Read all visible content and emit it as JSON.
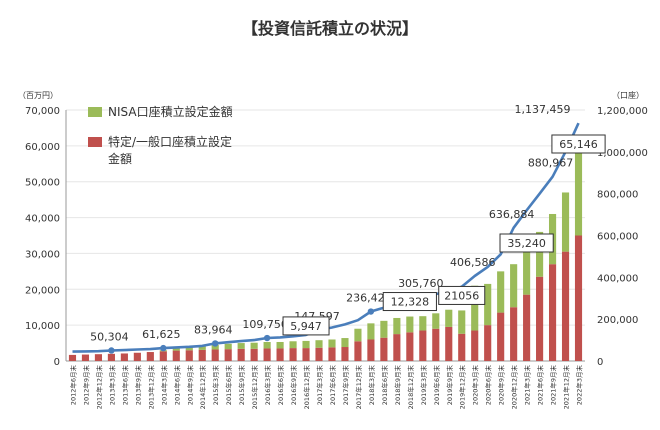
{
  "chart_data": {
    "type": "bar",
    "title": "【投資信託積立の状況】",
    "y_left_unit": "（百万円）",
    "y_right_unit": "（口座）",
    "ylim_left": [
      0,
      70000
    ],
    "ylim_right": [
      0,
      1200000
    ],
    "left_ticks": [
      "0",
      "10,000",
      "20,000",
      "30,000",
      "40,000",
      "50,000",
      "60,000",
      "70,000"
    ],
    "right_ticks": [
      "0",
      "200,000",
      "400,000",
      "600,000",
      "800,000",
      "1,000,000",
      "1,200,000"
    ],
    "legend": {
      "nisa": "NISA口座積立設定金額",
      "tokutei_line1": "特定/一般口座積立設定",
      "tokutei_line2": "金額"
    },
    "categories": [
      "2012年6月末",
      "2012年9月末",
      "2012年12月末",
      "2013年3月末",
      "2013年6月末",
      "2013年9月末",
      "2013年12月末",
      "2014年3月末",
      "2014年6月末",
      "2014年9月末",
      "2014年12月末",
      "2015年3月末",
      "2015年6月末",
      "2015年9月末",
      "2015年12月末",
      "2016年3月末",
      "2016年6月末",
      "2016年9月末",
      "2016年12月末",
      "2017年3月末",
      "2017年6月末",
      "2017年9月末",
      "2017年12月末",
      "2018年3月末",
      "2018年6月末",
      "2018年9月末",
      "2018年12月末",
      "2019年3月末",
      "2019年6月末",
      "2019年9月末",
      "2019年12月末",
      "2020年3月末",
      "2020年6月末",
      "2020年9月末",
      "2020年12月末",
      "2021年3月末",
      "2021年6月末",
      "2021年9月末",
      "2021年12月末",
      "2022年3月末"
    ],
    "series": [
      {
        "name": "特定/一般口座積立設定金額",
        "color": "#c0504d",
        "values": [
          1700,
          1800,
          1900,
          2000,
          2100,
          2300,
          2500,
          2700,
          2900,
          3000,
          3100,
          3200,
          3300,
          3400,
          3400,
          3500,
          3500,
          3600,
          3600,
          3700,
          3800,
          3900,
          5500,
          6000,
          6500,
          7500,
          8000,
          8500,
          9000,
          9500,
          7600,
          8500,
          10000,
          13500,
          15000,
          18500,
          23500,
          27000,
          30500,
          35000
        ]
      },
      {
        "name": "NISA口座積立設定金額",
        "color": "#9bbb59",
        "values": [
          0,
          0,
          0,
          0,
          0,
          0,
          0,
          300,
          600,
          800,
          1000,
          1300,
          1500,
          1600,
          1700,
          1800,
          1800,
          1900,
          2000,
          2100,
          2200,
          2500,
          3500,
          4500,
          4700,
          4500,
          4400,
          4000,
          4300,
          4800,
          6500,
          12500,
          11500,
          11500,
          12000,
          13000,
          12500,
          14000,
          16500,
          26000
        ]
      },
      {
        "name": "口座数",
        "color": "#4a7ebb",
        "axis": "right",
        "values": [
          45000,
          46000,
          47000,
          50304,
          52000,
          55000,
          57000,
          61625,
          65000,
          68000,
          72000,
          83964,
          90000,
          95000,
          100000,
          109750,
          113000,
          118000,
          125000,
          147597,
          160000,
          175000,
          195000,
          236422,
          255000,
          275000,
          285000,
          305760,
          320000,
          335000,
          355000,
          406586,
          450000,
          510000,
          636884,
          720000,
          800000,
          880967,
          1000000,
          1137459
        ]
      }
    ],
    "line_labels": [
      {
        "i": 3,
        "text": "50,304"
      },
      {
        "i": 7,
        "text": "61,625"
      },
      {
        "i": 11,
        "text": "83,964"
      },
      {
        "i": 15,
        "text": "109,750"
      },
      {
        "i": 19,
        "text": "147,597"
      },
      {
        "i": 23,
        "text": "236,422"
      },
      {
        "i": 27,
        "text": "305,760"
      },
      {
        "i": 31,
        "text": "406,586"
      },
      {
        "i": 34,
        "text": "636,884"
      },
      {
        "i": 37,
        "text": "880,967"
      },
      {
        "i": 39,
        "text": "1,137,459"
      }
    ],
    "nisa_boxes": [
      {
        "i": 18,
        "text": "5,947"
      },
      {
        "i": 26,
        "text": "12,328"
      },
      {
        "i": 30,
        "text": "21056"
      },
      {
        "i": 35,
        "text": "35,240"
      },
      {
        "i": 39,
        "text": "65,146"
      }
    ],
    "marker_indices": [
      3,
      7,
      11,
      15,
      19,
      23
    ]
  }
}
